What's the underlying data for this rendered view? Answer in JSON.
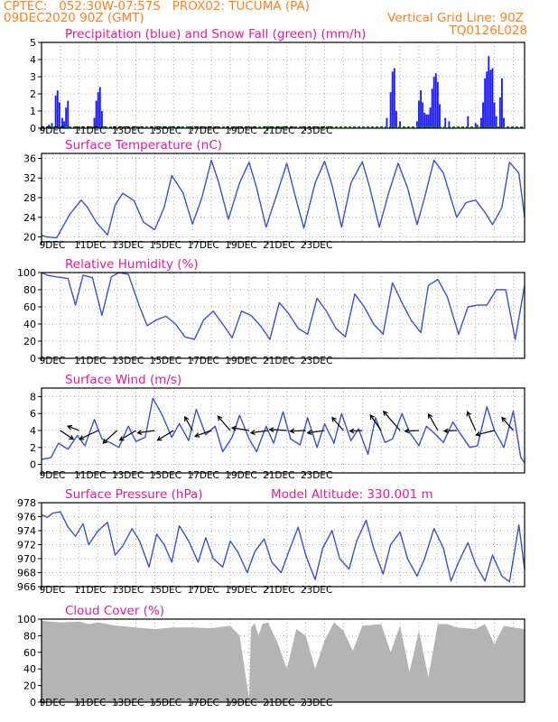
{
  "header": {
    "line1": "CPTEC:   052:30W-07:57S   PROX02: TUCUMA (PA)",
    "line2": "09DEC2020 90Z (GMT)",
    "grid_note": "Vertical Grid Line: 90Z",
    "code": "TQ0126L028"
  },
  "colors": {
    "header": "#ff7f1f",
    "title": "#e8189a",
    "precip": "#1c1cff",
    "snow": "#00a000",
    "line": "#3b50d8",
    "cloud": "#b4b4b4",
    "grid": "#aaaaaa"
  },
  "chart_data": [
    {
      "id": "precip",
      "type": "bar",
      "title": "Precipitation (blue) and Snow Fall (green) (mm/h)",
      "ylim": [
        0,
        5
      ],
      "yticks": [
        "0",
        "1",
        "2",
        "3",
        "4",
        "5"
      ],
      "xtick_labels": [
        "9DEC",
        "11DEC",
        "13DEC",
        "15DEC",
        "17DEC",
        "19DEC",
        "21DEC",
        "23DEC"
      ],
      "series": [
        {
          "name": "Precipitation",
          "color": "blue",
          "points": [
            [
              0.4,
              0.2
            ],
            [
              0.55,
              0.3
            ],
            [
              0.75,
              1.9
            ],
            [
              0.85,
              2.2
            ],
            [
              0.95,
              1.5
            ],
            [
              1.1,
              0.6
            ],
            [
              1.2,
              0.4
            ],
            [
              1.3,
              1.2
            ],
            [
              1.4,
              1.6
            ],
            [
              2.8,
              0.6
            ],
            [
              2.9,
              1.6
            ],
            [
              3.0,
              2.1
            ],
            [
              3.1,
              2.4
            ],
            [
              3.2,
              1.0
            ],
            [
              18.3,
              0.6
            ],
            [
              18.5,
              2.1
            ],
            [
              18.6,
              3.3
            ],
            [
              18.7,
              3.5
            ],
            [
              18.8,
              1.0
            ],
            [
              19.0,
              0.4
            ],
            [
              19.9,
              0.4
            ],
            [
              20.0,
              1.6
            ],
            [
              20.1,
              2.2
            ],
            [
              20.2,
              1.5
            ],
            [
              20.3,
              0.9
            ],
            [
              20.4,
              0.8
            ],
            [
              20.5,
              0.8
            ],
            [
              20.6,
              1.2
            ],
            [
              20.7,
              2.3
            ],
            [
              20.8,
              3.0
            ],
            [
              20.9,
              3.2
            ],
            [
              21.0,
              2.7
            ],
            [
              21.1,
              1.4
            ],
            [
              21.4,
              0.6
            ],
            [
              21.6,
              0.4
            ],
            [
              22.6,
              0.7
            ],
            [
              23.0,
              0.3
            ],
            [
              23.1,
              0.2
            ],
            [
              23.3,
              0.6
            ],
            [
              23.4,
              1.5
            ],
            [
              23.5,
              2.9
            ],
            [
              23.6,
              3.3
            ],
            [
              23.7,
              4.2
            ],
            [
              23.8,
              3.4
            ],
            [
              23.9,
              3.5
            ],
            [
              24.0,
              1.5
            ],
            [
              24.1,
              0.7
            ],
            [
              24.3,
              1.8
            ],
            [
              24.4,
              2.9
            ],
            [
              24.5,
              0.6
            ]
          ]
        }
      ]
    },
    {
      "id": "temperature",
      "type": "line",
      "title": "Surface Temperature (nC)",
      "ylim": [
        19,
        37
      ],
      "yticks": [
        "20",
        "24",
        "28",
        "32",
        "36"
      ],
      "xtick_labels": [
        "9DEC",
        "11DEC",
        "13DEC",
        "15DEC",
        "17DEC",
        "19DEC",
        "21DEC",
        "23DEC"
      ],
      "series": [
        {
          "name": "Temperature",
          "x": [
            0,
            0.3,
            0.8,
            1.5,
            2.1,
            2.4,
            2.9,
            3.5,
            3.9,
            4.3,
            4.9,
            5.4,
            6.0,
            6.5,
            6.9,
            7.5,
            8.0,
            8.5,
            9.0,
            9.4,
            9.9,
            10.5,
            11.0,
            11.4,
            11.9,
            12.5,
            13.0,
            13.4,
            13.9,
            14.5,
            15.0,
            15.4,
            15.9,
            16.4,
            17.0,
            17.4,
            17.9,
            18.4,
            18.9,
            19.4,
            19.9,
            20.3,
            20.8,
            21.3,
            22.0,
            22.5,
            23.0,
            23.5,
            23.9,
            24.4,
            24.8,
            25.3,
            25.6
          ],
          "y": [
            20.3,
            20.0,
            19.8,
            24.6,
            27.5,
            26.2,
            23.0,
            20.4,
            26.5,
            28.9,
            27.4,
            23.0,
            21.5,
            26.0,
            32.5,
            29.0,
            22.6,
            28.0,
            35.6,
            31.0,
            23.6,
            31.0,
            35.2,
            30.0,
            22.0,
            29.0,
            35.0,
            29.0,
            21.8,
            31.0,
            35.4,
            30.5,
            22.0,
            31.0,
            35.3,
            30.0,
            22.0,
            29.0,
            35.0,
            30.0,
            22.5,
            28.0,
            35.6,
            33.0,
            24.0,
            27.0,
            27.5,
            25.0,
            22.5,
            26.0,
            35.2,
            33.0,
            24.0
          ]
        }
      ]
    },
    {
      "id": "humidity",
      "type": "line",
      "title": "Relative Humidity (%)",
      "ylim": [
        0,
        100
      ],
      "yticks": [
        "0",
        "20",
        "40",
        "60",
        "80",
        "100"
      ],
      "xtick_labels": [
        "9DEC",
        "11DEC",
        "13DEC",
        "15DEC",
        "17DEC",
        "19DEC",
        "21DEC",
        "23DEC"
      ],
      "series": [
        {
          "name": "Relative Humidity",
          "x": [
            0,
            0.3,
            0.8,
            1.4,
            1.8,
            2.2,
            2.7,
            3.2,
            3.7,
            4.1,
            4.6,
            5.2,
            5.6,
            6.1,
            6.6,
            7.1,
            7.6,
            8.1,
            8.6,
            9.1,
            9.6,
            10.1,
            10.6,
            11.1,
            11.6,
            12.1,
            12.6,
            13.1,
            13.6,
            14.1,
            14.6,
            15.1,
            15.6,
            16.1,
            16.6,
            17.1,
            17.6,
            18.1,
            18.6,
            19.1,
            19.6,
            20.1,
            20.5,
            21.0,
            21.5,
            22.1,
            22.6,
            23.1,
            23.6,
            24.1,
            24.6,
            25.1,
            25.6
          ],
          "y": [
            100,
            97,
            95,
            93,
            62,
            97,
            94,
            50,
            95,
            100,
            98,
            60,
            38,
            45,
            49,
            40,
            25,
            22,
            45,
            55,
            40,
            24,
            55,
            50,
            38,
            22,
            65,
            52,
            35,
            28,
            70,
            55,
            35,
            25,
            75,
            60,
            40,
            28,
            88,
            65,
            44,
            30,
            85,
            92,
            72,
            28,
            60,
            62,
            62,
            80,
            80,
            22,
            85
          ]
        }
      ]
    },
    {
      "id": "wind",
      "type": "line",
      "title": "Surface Wind (m/s)",
      "ylim": [
        -1,
        9
      ],
      "yticks": [
        "0",
        "2",
        "4",
        "6",
        "8"
      ],
      "xtick_labels": [
        "9DEC",
        "11DEC",
        "13DEC",
        "15DEC",
        "17DEC",
        "19DEC",
        "21DEC",
        "23DEC"
      ],
      "series": [
        {
          "name": "Wind speed",
          "x": [
            0,
            0.5,
            0.9,
            1.4,
            1.9,
            2.3,
            2.8,
            3.2,
            3.7,
            4.1,
            4.6,
            5.0,
            5.5,
            5.9,
            6.4,
            6.9,
            7.3,
            7.8,
            8.2,
            8.7,
            9.2,
            9.6,
            10.1,
            10.5,
            11.0,
            11.4,
            11.9,
            12.3,
            12.8,
            13.2,
            13.7,
            14.1,
            14.6,
            15.0,
            15.5,
            15.9,
            16.4,
            16.8,
            17.3,
            17.7,
            18.2,
            18.6,
            19.1,
            19.5,
            20.0,
            20.4,
            20.9,
            21.3,
            21.8,
            22.2,
            22.7,
            23.1,
            23.6,
            24.0,
            24.5,
            25.0,
            25.4,
            25.6
          ],
          "y": [
            0.6,
            0.8,
            2.5,
            1.8,
            3.4,
            2.2,
            5.3,
            3.0,
            2.5,
            2.0,
            4.5,
            2.7,
            3.2,
            7.8,
            5.8,
            3.2,
            4.8,
            2.8,
            6.5,
            3.5,
            4.5,
            1.5,
            3.2,
            5.8,
            3.0,
            1.5,
            4.5,
            2.5,
            6.2,
            3.0,
            2.3,
            5.5,
            2.0,
            4.8,
            2.5,
            6.0,
            2.8,
            4.2,
            1.2,
            5.5,
            2.6,
            3.0,
            6.0,
            3.8,
            2.2,
            4.5,
            3.5,
            2.6,
            5.0,
            3.6,
            2.0,
            2.2,
            6.8,
            4.0,
            2.0,
            6.3,
            0.8,
            0.2
          ]
        }
      ],
      "arrows": [
        {
          "x": 1.0,
          "dir": 0.6,
          "len": 0.4
        },
        {
          "x": 2.0,
          "dir": 3.5,
          "len": 0.2
        },
        {
          "x": 3.0,
          "dir": 2.7,
          "len": 0.7
        },
        {
          "x": 4.0,
          "dir": 2.4,
          "len": 0.6
        },
        {
          "x": 5.0,
          "dir": 2.6,
          "len": 0.6
        },
        {
          "x": 6.0,
          "dir": 3.0,
          "len": 0.5
        },
        {
          "x": 7.0,
          "dir": 2.6,
          "len": 0.6
        },
        {
          "x": 8.0,
          "dir": 4.2,
          "len": 0.4
        },
        {
          "x": 9.0,
          "dir": 2.8,
          "len": 0.5
        },
        {
          "x": 10.0,
          "dir": 4.0,
          "len": 0.6
        },
        {
          "x": 11.0,
          "dir": 3.3,
          "len": 0.5
        },
        {
          "x": 12.0,
          "dir": 3.0,
          "len": 0.5
        },
        {
          "x": 13.0,
          "dir": 3.2,
          "len": 0.5
        },
        {
          "x": 14.0,
          "dir": 3.1,
          "len": 0.4
        },
        {
          "x": 15.0,
          "dir": 3.0,
          "len": 0.5
        },
        {
          "x": 16.0,
          "dir": 4.0,
          "len": 0.5
        },
        {
          "x": 17.0,
          "dir": 3.1,
          "len": 0.2
        },
        {
          "x": 18.0,
          "dir": 4.1,
          "len": 0.6
        },
        {
          "x": 19.0,
          "dir": 4.0,
          "len": 1.0
        },
        {
          "x": 20.0,
          "dir": 3.1,
          "len": 0.3
        },
        {
          "x": 21.0,
          "dir": 4.2,
          "len": 0.6
        },
        {
          "x": 22.0,
          "dir": 3.1,
          "len": 0.2
        },
        {
          "x": 23.0,
          "dir": 4.3,
          "len": 0.7
        },
        {
          "x": 24.0,
          "dir": 2.9,
          "len": 0.6
        },
        {
          "x": 25.0,
          "dir": 4.0,
          "len": 0.5
        }
      ]
    },
    {
      "id": "pressure",
      "type": "line",
      "title": "Surface Pressure (hPa)",
      "annotation": "Model Altitude: 330.001 m",
      "ylim": [
        966,
        978
      ],
      "yticks": [
        "966",
        "968",
        "970",
        "972",
        "974",
        "976",
        "978"
      ],
      "xtick_labels": [
        "9DEC",
        "11DEC",
        "13DEC",
        "15DEC",
        "17DEC",
        "19DEC",
        "21DEC",
        "23DEC"
      ],
      "series": [
        {
          "name": "Pressure",
          "x": [
            0,
            0.3,
            0.6,
            1.0,
            1.4,
            1.8,
            2.2,
            2.5,
            3.0,
            3.5,
            3.9,
            4.3,
            4.8,
            5.2,
            5.7,
            6.1,
            6.5,
            6.9,
            7.3,
            7.8,
            8.3,
            8.7,
            9.1,
            9.6,
            10.0,
            10.4,
            10.9,
            11.3,
            11.8,
            12.2,
            12.7,
            13.1,
            13.6,
            14.0,
            14.5,
            14.9,
            15.4,
            15.8,
            16.3,
            16.7,
            17.2,
            17.6,
            18.1,
            18.5,
            19.0,
            19.4,
            19.9,
            20.3,
            20.8,
            21.3,
            21.7,
            22.1,
            22.6,
            23.0,
            23.5,
            23.9,
            24.4,
            24.8,
            25.3,
            25.6
          ],
          "y": [
            976.3,
            975.9,
            976.5,
            976.7,
            974.5,
            973.2,
            975.0,
            972.0,
            974.0,
            975.2,
            970.5,
            971.8,
            974.3,
            972.5,
            968.8,
            973.5,
            972.0,
            969.5,
            974.7,
            972.5,
            969.5,
            973.0,
            970.0,
            968.8,
            972.5,
            971.0,
            968.0,
            971.0,
            972.8,
            969.5,
            968.0,
            971.0,
            974.5,
            970.5,
            967.0,
            971.5,
            974.0,
            970.0,
            968.5,
            972.5,
            975.5,
            971.5,
            967.8,
            972.0,
            973.8,
            970.0,
            967.5,
            970.0,
            974.3,
            971.5,
            966.8,
            969.5,
            972.3,
            969.2,
            966.8,
            970.5,
            967.5,
            966.7,
            974.8,
            968.5
          ]
        }
      ]
    },
    {
      "id": "cloud",
      "type": "area",
      "title": "Cloud Cover (%)",
      "ylim": [
        0,
        100
      ],
      "yticks": [
        "0",
        "20",
        "40",
        "60",
        "80",
        "100"
      ],
      "xtick_labels": [
        "9DEC",
        "11DEC",
        "13DEC",
        "15DEC",
        "17DEC",
        "19DEC",
        "21DEC",
        "23DEC"
      ],
      "series": [
        {
          "name": "Cloud Cover",
          "x": [
            0,
            1.0,
            2.0,
            2.5,
            3.0,
            4.0,
            5.0,
            6.0,
            7.0,
            8.0,
            9.0,
            10.0,
            10.5,
            11.0,
            11.1,
            11.3,
            11.5,
            11.7,
            12.0,
            12.5,
            13.0,
            13.5,
            14.0,
            14.5,
            15.0,
            15.5,
            16.0,
            16.5,
            17.0,
            18.0,
            18.5,
            19.0,
            19.5,
            20.0,
            20.5,
            21.0,
            21.5,
            22.0,
            23.0,
            23.5,
            24.0,
            24.5,
            25.0,
            25.6
          ],
          "y": [
            98,
            96,
            97,
            94,
            96,
            92,
            90,
            88,
            90,
            90,
            89,
            92,
            80,
            4,
            90,
            95,
            80,
            94,
            96,
            72,
            40,
            88,
            80,
            40,
            74,
            96,
            86,
            62,
            92,
            94,
            60,
            92,
            36,
            86,
            30,
            94,
            94,
            90,
            88,
            94,
            70,
            92,
            90,
            88
          ]
        }
      ]
    }
  ]
}
